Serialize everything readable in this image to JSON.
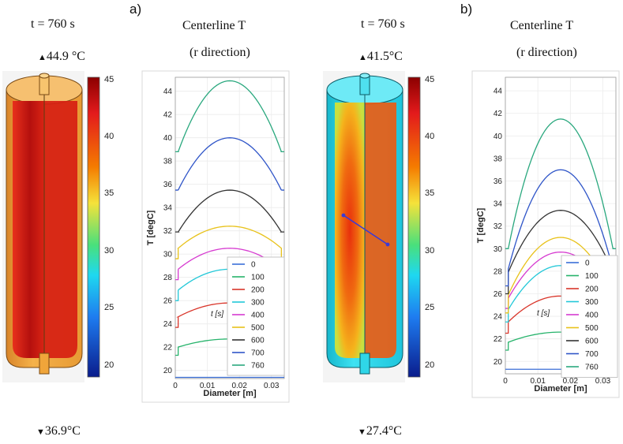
{
  "panels": [
    {
      "label": "a)",
      "time_label": "t = 760 s",
      "max_label": "44.9 °C",
      "min_label": "36.9°C",
      "plot_title_1": "Centerline T",
      "plot_title_2": "(r direction)",
      "colorbar_ticks": [
        "45",
        "40",
        "35",
        "30",
        "25",
        "20"
      ],
      "colors": {
        "shell": "#f0a53a",
        "core": "#c81e10"
      }
    },
    {
      "label": "b)",
      "time_label": "t = 760 s",
      "max_label": "41.5°C",
      "min_label": "27.4°C",
      "plot_title_1": "Centerline T",
      "plot_title_2": "(r direction)",
      "colorbar_ticks": [
        "45",
        "40",
        "35",
        "30",
        "25",
        "20"
      ],
      "colors": {
        "shell": "#2fd6e8",
        "core": "#e8400c"
      }
    }
  ],
  "chart_data": [
    {
      "type": "line",
      "title": "Centerline T (r direction)",
      "xlabel": "Diameter [m]",
      "ylabel": "T [degC]",
      "xlim": [
        0,
        0.034
      ],
      "ylim": [
        19.3,
        45.2
      ],
      "xticks": [
        "0",
        "0.01",
        "0.02",
        "0.03"
      ],
      "xtick_values": [
        0,
        0.01,
        0.02,
        0.03
      ],
      "yticks": [
        "20",
        "22",
        "24",
        "26",
        "28",
        "30",
        "32",
        "34",
        "36",
        "38",
        "40",
        "42",
        "44"
      ],
      "legend_title": "t [s]",
      "series": [
        {
          "name": "0",
          "color": "#3b6fd8",
          "edge": 19.4,
          "wall": 19.4,
          "center": 19.4
        },
        {
          "name": "100",
          "color": "#26b36b",
          "edge": 21.3,
          "wall": 22.0,
          "center": 22.7
        },
        {
          "name": "200",
          "color": "#d9352a",
          "edge": 23.7,
          "wall": 24.6,
          "center": 25.8
        },
        {
          "name": "300",
          "color": "#22c8d8",
          "edge": 26.0,
          "wall": 26.9,
          "center": 28.7
        },
        {
          "name": "400",
          "color": "#d63ad0",
          "edge": 27.8,
          "wall": 28.7,
          "center": 30.5
        },
        {
          "name": "500",
          "color": "#e8c21a",
          "edge": 29.6,
          "wall": 30.5,
          "center": 32.4
        },
        {
          "name": "600",
          "color": "#333333",
          "edge": 31.9,
          "wall": 31.9,
          "center": 35.5
        },
        {
          "name": "700",
          "color": "#2f55c8",
          "edge": 35.5,
          "wall": 35.5,
          "center": 40.0
        },
        {
          "name": "760",
          "color": "#2aa87e",
          "edge": 38.8,
          "wall": 38.8,
          "center": 44.9
        }
      ]
    },
    {
      "type": "line",
      "title": "Centerline T (r direction)",
      "xlabel": "Diameter [m]",
      "ylabel": "T [degC]",
      "xlim": [
        0,
        0.034
      ],
      "ylim": [
        18.9,
        45.2
      ],
      "xticks": [
        "0",
        "0.01",
        "0.02",
        "0.03"
      ],
      "xtick_values": [
        0,
        0.01,
        0.02,
        0.03
      ],
      "yticks": [
        "20",
        "22",
        "24",
        "26",
        "28",
        "30",
        "32",
        "34",
        "36",
        "38",
        "40",
        "42",
        "44"
      ],
      "legend_title": "t [s]",
      "series": [
        {
          "name": "0",
          "color": "#3b6fd8",
          "edge": 19.3,
          "wall": 19.3,
          "center": 19.3
        },
        {
          "name": "100",
          "color": "#26b36b",
          "edge": 21.0,
          "wall": 21.7,
          "center": 22.6
        },
        {
          "name": "200",
          "color": "#d9352a",
          "edge": 22.5,
          "wall": 23.5,
          "center": 25.8
        },
        {
          "name": "300",
          "color": "#22c8d8",
          "edge": 23.5,
          "wall": 24.6,
          "center": 28.5
        },
        {
          "name": "400",
          "color": "#d63ad0",
          "edge": 24.7,
          "wall": 25.6,
          "center": 29.7
        },
        {
          "name": "500",
          "color": "#e8c21a",
          "edge": 24.3,
          "wall": 25.9,
          "center": 31.0
        },
        {
          "name": "600",
          "color": "#333333",
          "edge": 26.0,
          "wall": 27.9,
          "center": 33.4
        },
        {
          "name": "700",
          "color": "#2f55c8",
          "edge": 26.7,
          "wall": 28.2,
          "center": 37.0
        },
        {
          "name": "760",
          "color": "#2aa87e",
          "edge": 30.0,
          "wall": 30.0,
          "center": 41.5
        }
      ]
    }
  ]
}
